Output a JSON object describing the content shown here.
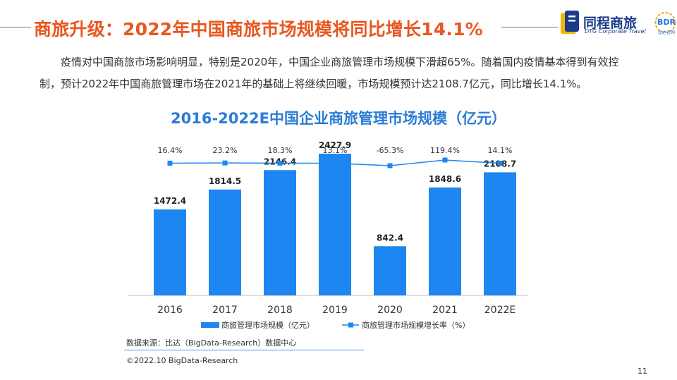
{
  "header": {
    "title": "商旅升级：2022年中国商旅市场规模将同比增长14.1%"
  },
  "logo": {
    "brand_cn": "同程商旅",
    "brand_en": "DTG Corporate Travel",
    "partner": "BDR",
    "partner_sub": "比达咨询"
  },
  "intro": "疫情对中国商旅市场影响明显，特别是2020年，中国企业商旅管理市场规模下滑超65%。随着国内疫情基本得到有效控制，预计2022年中国商旅管理市场在2021年的基础上将继续回暖，市场规模预计达2108.7亿元，同比增长14.1%。",
  "chart_data": {
    "type": "bar",
    "title": "2016-2022E中国企业商旅管理市场规模（亿元）",
    "categories": [
      "2016",
      "2017",
      "2018",
      "2019",
      "2020",
      "2021",
      "2022E"
    ],
    "series": [
      {
        "name": "商旅管理市场规模（亿元）",
        "type": "bar",
        "values": [
          1472.4,
          1814.5,
          2146.4,
          2427.9,
          842.4,
          1848.6,
          2108.7
        ],
        "labels": [
          "1472.4",
          "1814.5",
          "2146.4",
          "2427.9",
          "842.4",
          "1848.6",
          "2108.7"
        ]
      },
      {
        "name": "商旅管理市场规模增长率（%）",
        "type": "line",
        "values": [
          16.4,
          23.2,
          18.3,
          13.1,
          -65.3,
          119.4,
          14.1
        ],
        "labels": [
          "16.4%",
          "23.2%",
          "18.3%",
          "13.1%",
          "-65.3%",
          "119.4%",
          "14.1%"
        ]
      }
    ],
    "legend_position": "bottom",
    "colors": {
      "bar": "#1e86f0",
      "line": "#1e86f0"
    }
  },
  "footer": {
    "source": "数据来源：比达（BigData-Research）数据中心",
    "copyright": "©2022.10 BigData-Research",
    "page_number": "11"
  }
}
